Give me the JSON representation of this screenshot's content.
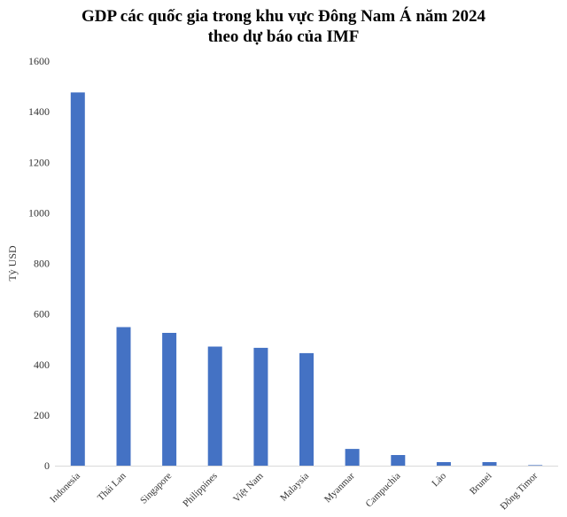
{
  "chart_data": {
    "type": "bar",
    "title_lines": [
      "GDP các quốc gia trong khu vực Đông Nam Á năm 2024",
      "theo dự báo của IMF"
    ],
    "xlabel": "",
    "ylabel": "Tỷ USD",
    "ylim": [
      0,
      1600
    ],
    "yticks": [
      0,
      200,
      400,
      600,
      800,
      1000,
      1200,
      1400,
      1600
    ],
    "grid": false,
    "legend": "none",
    "bar_color": "#4472C4",
    "categories": [
      "Indonesia",
      "Thái Lan",
      "Singapore",
      "Philippines",
      "Việt Nam",
      "Malaysia",
      "Myanmar",
      "Campuchia",
      "Lào",
      "Brunei",
      "Đông Timor"
    ],
    "values": [
      1476,
      548,
      525,
      471,
      466,
      445,
      66,
      42,
      14,
      14,
      2
    ]
  }
}
